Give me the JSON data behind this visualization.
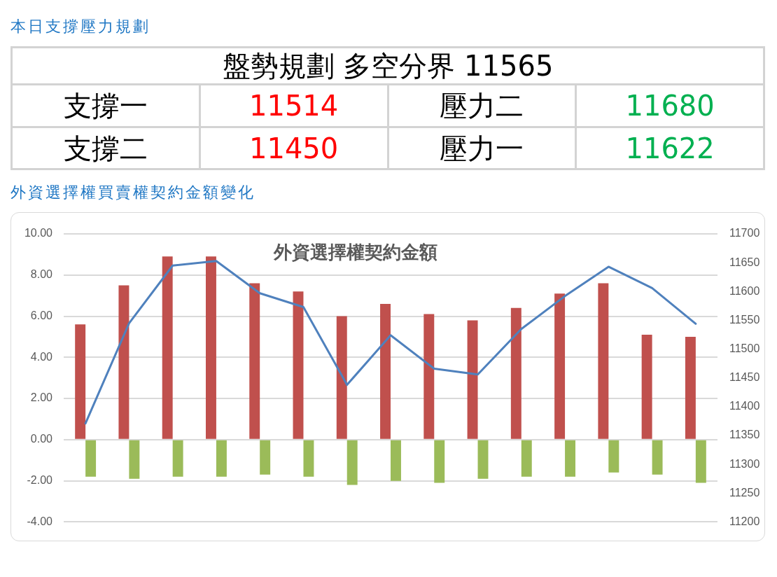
{
  "chart_data": [
    {
      "type": "other",
      "title": "本日支撐壓力規劃",
      "annotations": [
        "盤勢規劃 多空分界 11565",
        "支撐一",
        "11514",
        "壓力二",
        "11680",
        "支撐二",
        "11450",
        "壓力一",
        "11622"
      ]
    },
    {
      "type": "bar",
      "title": "外資選擇權買賣權契約金額變化",
      "subtitle": "外資選擇權契約金額",
      "categories": [
        null,
        null,
        null,
        null,
        null,
        null,
        null,
        null,
        null,
        null,
        null,
        null,
        null,
        null,
        null
      ],
      "series": [
        {
          "color": "#c0504d",
          "values": [
            5.6,
            7.5,
            8.9,
            8.9,
            7.6,
            7.2,
            6.0,
            6.6,
            6.1,
            5.8,
            6.4,
            7.1,
            7.6,
            5.1,
            5.0
          ]
        },
        {
          "color": "#9bbb59",
          "values": [
            -1.8,
            -1.9,
            -1.8,
            -1.8,
            -1.7,
            -1.8,
            -2.2,
            -2.0,
            -2.1,
            -1.9,
            -1.8,
            -1.8,
            -1.6,
            -1.7,
            -2.1
          ]
        },
        {
          "type": "line",
          "axis": "y2",
          "color": "#4f81bd",
          "marker": "none",
          "values": [
            11371,
            11545,
            11645,
            11653,
            11597,
            11573,
            11438,
            11524,
            11466,
            11456,
            11535,
            11592,
            11643,
            11606,
            11544
          ]
        }
      ],
      "ylim": [
        -4,
        10
      ],
      "yticks": [
        {
          "value": -4,
          "label": "-4.00"
        },
        {
          "value": -2,
          "label": "-2.00"
        },
        {
          "value": 0,
          "label": "0.00"
        },
        {
          "value": 2,
          "label": "2.00"
        },
        {
          "value": 4,
          "label": "4.00"
        },
        {
          "value": 6,
          "label": "6.00"
        },
        {
          "value": 8,
          "label": "8.00"
        },
        {
          "value": 10,
          "label": "10.00"
        }
      ],
      "y2lim": [
        11200,
        11700
      ],
      "y2ticks": [
        11200,
        11250,
        11300,
        11350,
        11400,
        11450,
        11500,
        11550,
        11600,
        11650,
        11700
      ],
      "grid": "y",
      "legend": false
    }
  ]
}
